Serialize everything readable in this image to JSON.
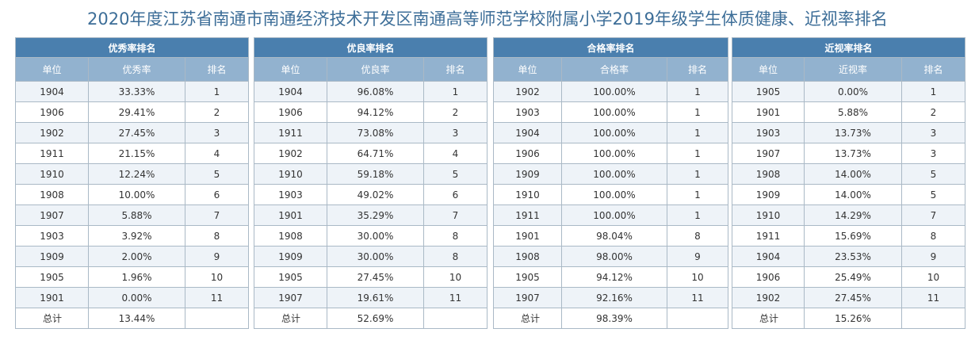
{
  "title": "2020年度江苏省南通市南通经济技术开发区南通高等师范学校附属小学2019年级学生体质健康、近视率排名",
  "tables": [
    {
      "name": "优秀率排名",
      "headers": [
        "单位",
        "优秀率",
        "排名"
      ],
      "rows": [
        [
          "1904",
          "33.33%",
          "1"
        ],
        [
          "1906",
          "29.41%",
          "2"
        ],
        [
          "1902",
          "27.45%",
          "3"
        ],
        [
          "1911",
          "21.15%",
          "4"
        ],
        [
          "1910",
          "12.24%",
          "5"
        ],
        [
          "1908",
          "10.00%",
          "6"
        ],
        [
          "1907",
          "5.88%",
          "7"
        ],
        [
          "1903",
          "3.92%",
          "8"
        ],
        [
          "1909",
          "2.00%",
          "9"
        ],
        [
          "1905",
          "1.96%",
          "10"
        ],
        [
          "1901",
          "0.00%",
          "11"
        ]
      ],
      "total": [
        "总计",
        "13.44%",
        ""
      ]
    },
    {
      "name": "优良率排名",
      "headers": [
        "单位",
        "优良率",
        "排名"
      ],
      "rows": [
        [
          "1904",
          "96.08%",
          "1"
        ],
        [
          "1906",
          "94.12%",
          "2"
        ],
        [
          "1911",
          "73.08%",
          "3"
        ],
        [
          "1902",
          "64.71%",
          "4"
        ],
        [
          "1910",
          "59.18%",
          "5"
        ],
        [
          "1903",
          "49.02%",
          "6"
        ],
        [
          "1901",
          "35.29%",
          "7"
        ],
        [
          "1908",
          "30.00%",
          "8"
        ],
        [
          "1909",
          "30.00%",
          "8"
        ],
        [
          "1905",
          "27.45%",
          "10"
        ],
        [
          "1907",
          "19.61%",
          "11"
        ]
      ],
      "total": [
        "总计",
        "52.69%",
        ""
      ]
    },
    {
      "name": "合格率排名",
      "headers": [
        "单位",
        "合格率",
        "排名"
      ],
      "rows": [
        [
          "1902",
          "100.00%",
          "1"
        ],
        [
          "1903",
          "100.00%",
          "1"
        ],
        [
          "1904",
          "100.00%",
          "1"
        ],
        [
          "1906",
          "100.00%",
          "1"
        ],
        [
          "1909",
          "100.00%",
          "1"
        ],
        [
          "1910",
          "100.00%",
          "1"
        ],
        [
          "1911",
          "100.00%",
          "1"
        ],
        [
          "1901",
          "98.04%",
          "8"
        ],
        [
          "1908",
          "98.00%",
          "9"
        ],
        [
          "1905",
          "94.12%",
          "10"
        ],
        [
          "1907",
          "92.16%",
          "11"
        ]
      ],
      "total": [
        "总计",
        "98.39%",
        ""
      ]
    },
    {
      "name": "近视率排名",
      "headers": [
        "单位",
        "近视率",
        "排名"
      ],
      "rows": [
        [
          "1905",
          "0.00%",
          "1"
        ],
        [
          "1901",
          "5.88%",
          "2"
        ],
        [
          "1903",
          "13.73%",
          "3"
        ],
        [
          "1907",
          "13.73%",
          "3"
        ],
        [
          "1908",
          "14.00%",
          "5"
        ],
        [
          "1909",
          "14.00%",
          "5"
        ],
        [
          "1910",
          "14.29%",
          "7"
        ],
        [
          "1911",
          "15.69%",
          "8"
        ],
        [
          "1904",
          "23.53%",
          "9"
        ],
        [
          "1906",
          "25.49%",
          "10"
        ],
        [
          "1902",
          "27.45%",
          "11"
        ]
      ],
      "total": [
        "总计",
        "15.26%",
        ""
      ]
    }
  ]
}
